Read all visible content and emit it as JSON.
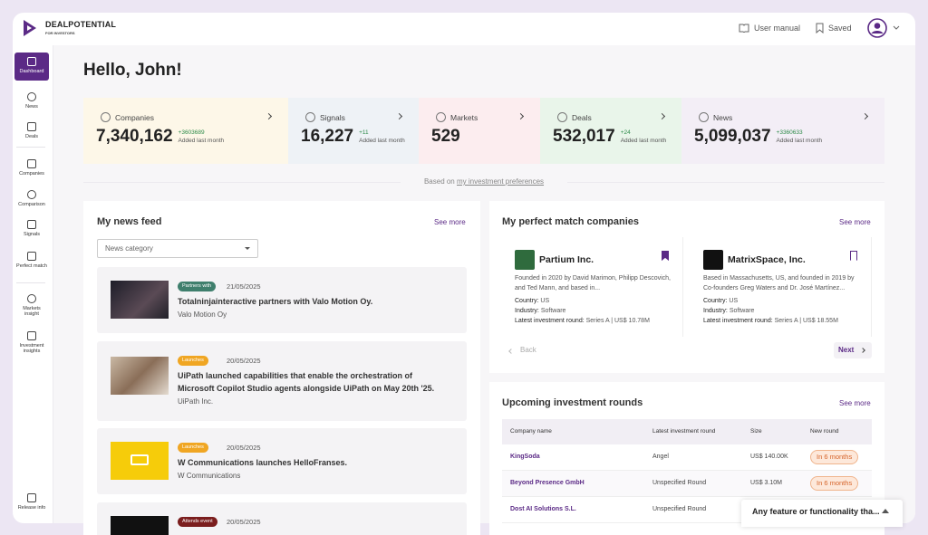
{
  "brand": {
    "name": "DEALPOTENTIAL",
    "tagline": "FOR INVESTORS"
  },
  "header": {
    "user_manual": "User manual",
    "saved": "Saved"
  },
  "sidebar": [
    "Dashboard",
    "News",
    "Deals",
    "Companies",
    "Comparison",
    "Signals",
    "Perfect match",
    "Markets insight",
    "Investment insights",
    "Release info"
  ],
  "greeting": "Hello, John!",
  "stats": [
    {
      "label": "Companies",
      "value": "7,340,162",
      "delta": "+3603689",
      "note": "Added last month"
    },
    {
      "label": "Signals",
      "value": "16,227",
      "delta": "+11",
      "note": "Added last month"
    },
    {
      "label": "Markets",
      "value": "529"
    },
    {
      "label": "Deals",
      "value": "532,017",
      "delta": "+24",
      "note": "Added last month"
    },
    {
      "label": "News",
      "value": "5,099,037",
      "delta": "+3360633",
      "note": "Added last month"
    }
  ],
  "preferences": {
    "prefix": "Based on",
    "link": "my investment preferences"
  },
  "news_feed": {
    "title": "My news feed",
    "see_more": "See more",
    "filter": "News category",
    "items": [
      {
        "tag": "Partners with",
        "date": "21/05/2025",
        "headline": "Totalninjainteractive partners with Valo Motion Oy.",
        "company": "Valo Motion Oy"
      },
      {
        "tag": "Launches",
        "date": "20/05/2025",
        "headline": "UiPath launched capabilities that enable the orchestration of Microsoft Copilot Studio agents alongside UiPath on May 20th '25.",
        "company": "UiPath Inc."
      },
      {
        "tag": "Launches",
        "date": "20/05/2025",
        "headline": "W Communications launches HelloFranses.",
        "company": "W Communications"
      },
      {
        "tag": "Attends event",
        "date": "20/05/2025"
      }
    ]
  },
  "perfect_match": {
    "title": "My perfect match companies",
    "see_more": "See more",
    "back": "Back",
    "next": "Next",
    "labels": {
      "country": "Country:",
      "industry": "Industry:",
      "round": "Latest investment round:"
    },
    "companies": [
      {
        "name": "Partium Inc.",
        "description": "Founded in 2020 by David Marimon, Philipp Descovich, and Ted Mann, and based in...",
        "country": "US",
        "industry": "Software",
        "round": "Series A | US$ 10.78M"
      },
      {
        "name": "MatrixSpace, Inc.",
        "description": "Based in Massachusetts, US, and founded in 2019 by Co-founders Greg Waters and Dr. José Martínez...",
        "country": "US",
        "industry": "Software",
        "round": "Series A | US$ 18.55M"
      }
    ]
  },
  "upcoming": {
    "title": "Upcoming investment rounds",
    "see_more": "See more",
    "columns": [
      "Company name",
      "Latest investment round",
      "Size",
      "New round"
    ],
    "rows": [
      [
        "KingSoda",
        "Angel",
        "US$ 140.00K",
        "In 6 months"
      ],
      [
        "Beyond Presence GmbH",
        "Unspecified Round",
        "US$ 3.10M",
        "In 6 months"
      ],
      [
        "Dost AI Solutions S.L.",
        "Unspecified Round"
      ]
    ]
  },
  "chat": {
    "text": "Any feature or functionality tha..."
  }
}
